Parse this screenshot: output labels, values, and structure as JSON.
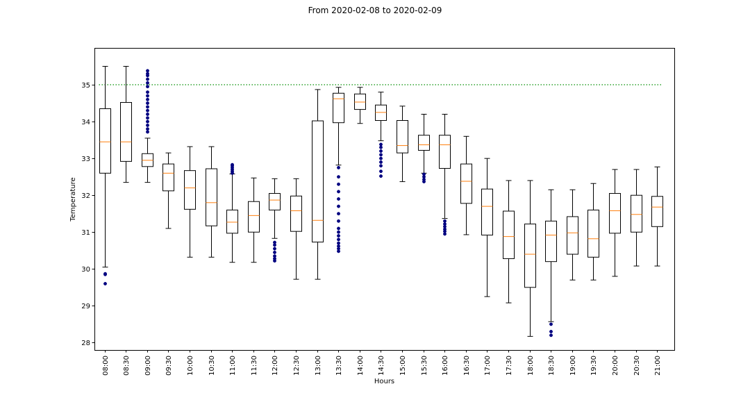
{
  "chart_data": {
    "type": "box",
    "title": "From 2020-02-08 to 2020-02-09",
    "xlabel": "Hours",
    "ylabel": "Temperature",
    "ylim": [
      27.8,
      36.0
    ],
    "yticks": [
      28,
      29,
      30,
      31,
      32,
      33,
      34,
      35
    ],
    "grid": false,
    "reference_line": {
      "y": 35,
      "color": "#2ca02c",
      "style": "dotted"
    },
    "colors": {
      "box": "#000000",
      "median": "#ff7f0e",
      "outlier": "#000080"
    },
    "categories": [
      "08:00",
      "08:30",
      "09:00",
      "09:30",
      "10:00",
      "10:30",
      "11:00",
      "11:30",
      "12:00",
      "12:30",
      "13:00",
      "13:30",
      "14:00",
      "14:30",
      "15:00",
      "15:30",
      "16:00",
      "16:30",
      "17:00",
      "17:30",
      "18:00",
      "18:30",
      "19:00",
      "19:30",
      "20:00",
      "20:30",
      "21:00"
    ],
    "boxes": [
      {
        "low": 30.05,
        "q1": 32.6,
        "median": 33.45,
        "q3": 34.35,
        "high": 35.5,
        "outliers": [
          29.6,
          29.85,
          29.87
        ]
      },
      {
        "low": 32.35,
        "q1": 32.92,
        "median": 33.45,
        "q3": 34.52,
        "high": 35.5,
        "outliers": []
      },
      {
        "low": 32.35,
        "q1": 32.78,
        "median": 32.95,
        "q3": 33.13,
        "high": 33.55,
        "outliers": [
          33.72,
          33.8,
          33.9,
          34.0,
          34.1,
          34.2,
          34.3,
          34.4,
          34.5,
          34.6,
          34.7,
          34.8,
          34.95,
          35.05,
          35.15,
          35.25,
          35.3,
          35.38
        ]
      },
      {
        "low": 31.1,
        "q1": 32.12,
        "median": 32.6,
        "q3": 32.85,
        "high": 33.15,
        "outliers": []
      },
      {
        "low": 30.32,
        "q1": 31.62,
        "median": 32.2,
        "q3": 32.67,
        "high": 33.32,
        "outliers": []
      },
      {
        "low": 30.32,
        "q1": 31.17,
        "median": 31.8,
        "q3": 32.72,
        "high": 33.32,
        "outliers": []
      },
      {
        "low": 30.18,
        "q1": 30.97,
        "median": 31.27,
        "q3": 31.6,
        "high": 32.58,
        "outliers": [
          32.6,
          32.65,
          32.7,
          32.75,
          32.8,
          32.83
        ]
      },
      {
        "low": 30.18,
        "q1": 31.0,
        "median": 31.45,
        "q3": 31.83,
        "high": 32.47,
        "outliers": []
      },
      {
        "low": 30.83,
        "q1": 31.6,
        "median": 31.87,
        "q3": 32.05,
        "high": 32.45,
        "outliers": [
          30.22,
          30.28,
          30.35,
          30.45,
          30.55,
          30.65,
          30.72
        ]
      },
      {
        "low": 29.72,
        "q1": 31.02,
        "median": 31.58,
        "q3": 31.98,
        "high": 32.45,
        "outliers": []
      },
      {
        "low": 29.72,
        "q1": 30.73,
        "median": 31.32,
        "q3": 34.02,
        "high": 34.87,
        "outliers": []
      },
      {
        "low": 32.82,
        "q1": 33.97,
        "median": 34.62,
        "q3": 34.77,
        "high": 34.93,
        "outliers": [
          30.48,
          30.55,
          30.62,
          30.7,
          30.8,
          30.9,
          31.0,
          31.1,
          31.3,
          31.5,
          31.7,
          31.9,
          32.1,
          32.3,
          32.5,
          32.75
        ]
      },
      {
        "low": 33.95,
        "q1": 34.33,
        "median": 34.53,
        "q3": 34.75,
        "high": 34.93,
        "outliers": []
      },
      {
        "low": 33.48,
        "q1": 34.03,
        "median": 34.25,
        "q3": 34.45,
        "high": 34.8,
        "outliers": [
          32.52,
          32.65,
          32.8,
          32.9,
          33.0,
          33.1,
          33.2,
          33.3,
          33.38
        ]
      },
      {
        "low": 32.37,
        "q1": 33.15,
        "median": 33.35,
        "q3": 34.03,
        "high": 34.42,
        "outliers": []
      },
      {
        "low": 32.6,
        "q1": 33.22,
        "median": 33.37,
        "q3": 33.63,
        "high": 34.2,
        "outliers": [
          32.37,
          32.43,
          32.5,
          32.57
        ]
      },
      {
        "low": 31.37,
        "q1": 32.73,
        "median": 33.37,
        "q3": 33.63,
        "high": 34.2,
        "outliers": [
          30.95,
          31.02,
          31.08,
          31.15,
          31.22,
          31.3
        ]
      },
      {
        "low": 30.93,
        "q1": 31.78,
        "median": 32.38,
        "q3": 32.85,
        "high": 33.6,
        "outliers": []
      },
      {
        "low": 29.25,
        "q1": 30.92,
        "median": 31.7,
        "q3": 32.17,
        "high": 33.0,
        "outliers": []
      },
      {
        "low": 29.08,
        "q1": 30.28,
        "median": 30.88,
        "q3": 31.57,
        "high": 32.4,
        "outliers": []
      },
      {
        "low": 28.17,
        "q1": 29.5,
        "median": 30.4,
        "q3": 31.22,
        "high": 32.4,
        "outliers": []
      },
      {
        "low": 28.57,
        "q1": 30.2,
        "median": 30.92,
        "q3": 31.3,
        "high": 32.15,
        "outliers": [
          28.2,
          28.3,
          28.5
        ]
      },
      {
        "low": 29.7,
        "q1": 30.4,
        "median": 30.98,
        "q3": 31.42,
        "high": 32.15,
        "outliers": []
      },
      {
        "low": 29.7,
        "q1": 30.32,
        "median": 30.82,
        "q3": 31.6,
        "high": 32.32,
        "outliers": []
      },
      {
        "low": 29.8,
        "q1": 30.97,
        "median": 31.58,
        "q3": 32.05,
        "high": 32.7,
        "outliers": []
      },
      {
        "low": 30.08,
        "q1": 31.0,
        "median": 31.48,
        "q3": 32.0,
        "high": 32.7,
        "outliers": []
      },
      {
        "low": 30.08,
        "q1": 31.15,
        "median": 31.68,
        "q3": 31.97,
        "high": 32.77,
        "outliers": []
      }
    ]
  }
}
